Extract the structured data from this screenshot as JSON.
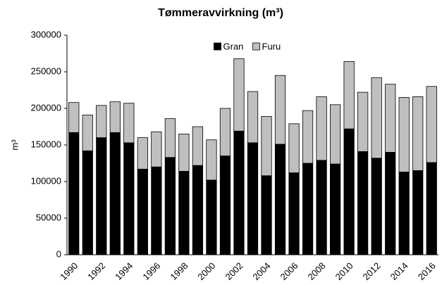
{
  "chart_data": {
    "type": "stacked_bar",
    "title": "Tømmeravvirkning (m³)",
    "y_label": "m³",
    "categories": [
      "1990",
      null,
      "1992",
      null,
      "1994",
      null,
      "1996",
      null,
      "1998",
      null,
      "2000",
      null,
      "2002",
      null,
      "2004",
      null,
      "2006",
      null,
      "2008",
      null,
      "2010",
      null,
      "2012",
      null,
      "2014",
      null,
      "2016"
    ],
    "series": [
      {
        "name": "Gran",
        "color": "#000000",
        "values": [
          167000,
          142000,
          160000,
          167000,
          153000,
          117000,
          120000,
          133000,
          114000,
          122000,
          102000,
          135000,
          169000,
          153000,
          108000,
          151000,
          112000,
          125000,
          129000,
          124000,
          172000,
          141000,
          132000,
          140000,
          113000,
          115000,
          126000
        ]
      },
      {
        "name": "Furu",
        "color": "#bfbfbf",
        "values": [
          41000,
          49000,
          44000,
          42000,
          54000,
          43000,
          48000,
          53000,
          51000,
          53000,
          55000,
          65000,
          99000,
          70000,
          81000,
          94000,
          67000,
          72000,
          87000,
          81000,
          92000,
          81000,
          110000,
          93000,
          102000,
          101000,
          104000
        ]
      }
    ],
    "ylim": [
      0,
      300000
    ],
    "yticks": [
      0,
      50000,
      100000,
      150000,
      200000,
      250000,
      300000
    ],
    "grid": false,
    "legend": "top"
  }
}
